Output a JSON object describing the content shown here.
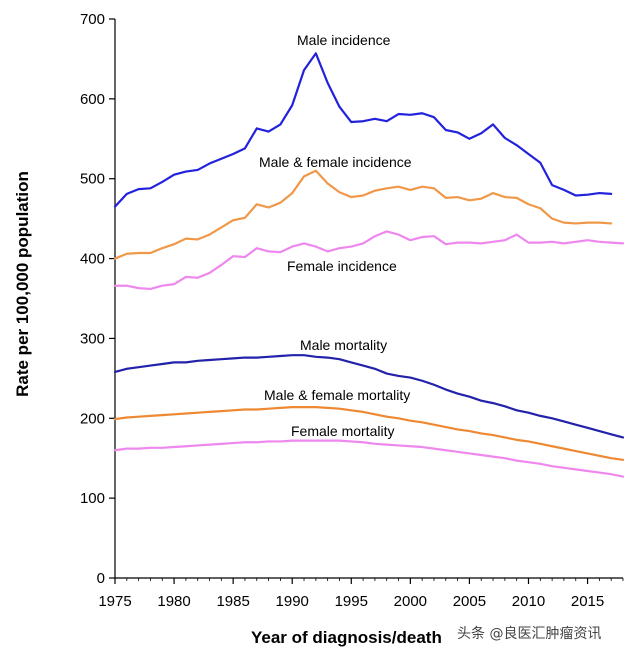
{
  "chart_data": {
    "type": "line",
    "title": "",
    "xlabel": "Year of diagnosis/death",
    "ylabel": "Rate per 100,000 population",
    "xlim": [
      1975,
      2018
    ],
    "ylim": [
      0,
      700
    ],
    "xticks": [
      1975,
      1980,
      1985,
      1990,
      1995,
      2000,
      2005,
      2010,
      2015
    ],
    "yticks": [
      0,
      100,
      200,
      300,
      400,
      500,
      600,
      700
    ],
    "grid": false,
    "x": [
      1975,
      1976,
      1977,
      1978,
      1979,
      1980,
      1981,
      1982,
      1983,
      1984,
      1985,
      1986,
      1987,
      1988,
      1989,
      1990,
      1991,
      1992,
      1993,
      1994,
      1995,
      1996,
      1997,
      1998,
      1999,
      2000,
      2001,
      2002,
      2003,
      2004,
      2005,
      2006,
      2007,
      2008,
      2009,
      2010,
      2011,
      2012,
      2013,
      2014,
      2015,
      2016,
      2017,
      2018
    ],
    "series": [
      {
        "name": "Male incidence",
        "color": "#2222dd",
        "values": [
          465,
          481,
          487,
          488,
          496,
          505,
          509,
          511,
          519,
          525,
          531,
          538,
          563,
          559,
          568,
          592,
          636,
          657,
          620,
          590,
          571,
          572,
          575,
          572,
          581,
          580,
          582,
          577,
          561,
          558,
          550,
          557,
          568,
          551,
          542,
          531,
          520,
          492,
          486,
          479,
          480,
          482,
          481,
          null
        ]
      },
      {
        "name": "Male & female incidence",
        "color": "#f0984a",
        "values": [
          400,
          406,
          407,
          407,
          413,
          418,
          425,
          424,
          430,
          439,
          448,
          451,
          468,
          464,
          470,
          482,
          503,
          510,
          494,
          483,
          477,
          479,
          485,
          488,
          490,
          486,
          490,
          488,
          476,
          477,
          473,
          475,
          482,
          477,
          476,
          468,
          463,
          450,
          445,
          444,
          445,
          445,
          444,
          null
        ]
      },
      {
        "name": "Female incidence",
        "color": "#ee88ee",
        "values": [
          366,
          366,
          363,
          362,
          366,
          368,
          377,
          376,
          382,
          392,
          403,
          402,
          413,
          409,
          408,
          415,
          419,
          415,
          409,
          413,
          415,
          419,
          428,
          434,
          430,
          423,
          427,
          428,
          418,
          420,
          420,
          419,
          421,
          423,
          430,
          420,
          420,
          421,
          419,
          421,
          423,
          421,
          420,
          419
        ]
      },
      {
        "name": "Male mortality",
        "color": "#2222aa",
        "values": [
          258,
          262,
          264,
          266,
          268,
          270,
          270,
          272,
          273,
          274,
          275,
          276,
          276,
          277,
          278,
          279,
          279,
          277,
          276,
          274,
          270,
          266,
          262,
          256,
          253,
          251,
          247,
          242,
          236,
          231,
          227,
          222,
          219,
          215,
          210,
          207,
          203,
          200,
          196,
          192,
          188,
          184,
          180,
          176
        ]
      },
      {
        "name": "Male & female mortality",
        "color": "#ee8833",
        "values": [
          199,
          201,
          202,
          203,
          204,
          205,
          206,
          207,
          208,
          209,
          210,
          211,
          211,
          212,
          213,
          214,
          214,
          214,
          213,
          212,
          210,
          208,
          205,
          202,
          200,
          197,
          195,
          192,
          189,
          186,
          184,
          181,
          179,
          176,
          173,
          171,
          168,
          165,
          162,
          159,
          156,
          153,
          150,
          148
        ]
      },
      {
        "name": "Female mortality",
        "color": "#ee88ee",
        "values": [
          160,
          162,
          162,
          163,
          163,
          164,
          165,
          166,
          167,
          168,
          169,
          170,
          170,
          171,
          171,
          172,
          172,
          172,
          172,
          172,
          171,
          170,
          168,
          167,
          166,
          165,
          164,
          162,
          160,
          158,
          156,
          154,
          152,
          150,
          147,
          145,
          143,
          140,
          138,
          136,
          134,
          132,
          130,
          127
        ]
      }
    ],
    "annotations": [
      "Male incidence",
      "Male & female incidence",
      "Female incidence",
      "Male mortality",
      "Male & female mortality",
      "Female mortality"
    ]
  },
  "watermark": "头条 @良医汇肿瘤资讯"
}
